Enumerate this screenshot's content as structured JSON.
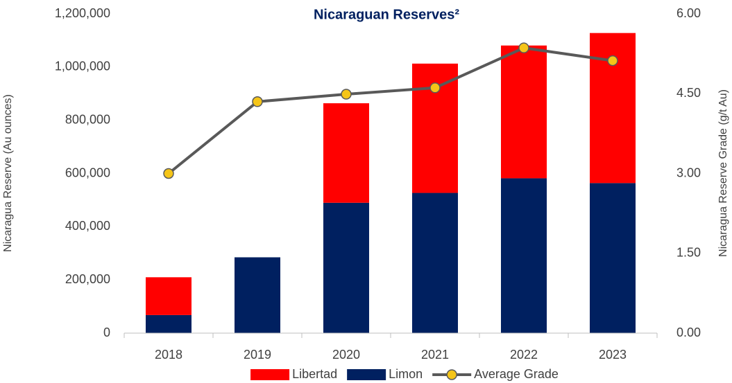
{
  "chart_data": {
    "type": "bar",
    "stacked": true,
    "title": "Nicaraguan Reserves²",
    "y_label": "Nicaragua Reserve (Au ounces)",
    "y2_label": "Nicaragua Reserve Grade (g/t Au)",
    "categories": [
      "2018",
      "2019",
      "2020",
      "2021",
      "2022",
      "2023"
    ],
    "series": [
      {
        "name": "Libertad",
        "type": "bar",
        "color": "#ff0000",
        "values": [
          142000,
          0,
          374000,
          486000,
          499000,
          564000
        ]
      },
      {
        "name": "Limon",
        "type": "bar",
        "color": "#002060",
        "values": [
          68000,
          285000,
          490000,
          527000,
          582000,
          564000
        ]
      },
      {
        "name": "Average Grade",
        "type": "line",
        "axis": "y2",
        "color": "#595959",
        "marker_color": "#f5c518",
        "values": [
          3.0,
          4.35,
          4.49,
          4.61,
          5.36,
          5.12
        ]
      }
    ],
    "ylim": [
      0,
      1200000
    ],
    "yticks": [
      {
        "value": 0,
        "label": "0"
      },
      {
        "value": 200000,
        "label": "200,000"
      },
      {
        "value": 400000,
        "label": "400,000"
      },
      {
        "value": 600000,
        "label": "600,000"
      },
      {
        "value": 800000,
        "label": "800,000"
      },
      {
        "value": 1000000,
        "label": "1,000,000"
      },
      {
        "value": 1200000,
        "label": "1,200,000"
      }
    ],
    "y2lim": [
      0,
      6
    ],
    "y2ticks": [
      {
        "value": 0,
        "label": "0.00"
      },
      {
        "value": 1.5,
        "label": "1.50"
      },
      {
        "value": 3,
        "label": "3.00"
      },
      {
        "value": 4.5,
        "label": "4.50"
      },
      {
        "value": 6,
        "label": "6.00"
      }
    ],
    "grid": false,
    "legend": "bottom"
  }
}
